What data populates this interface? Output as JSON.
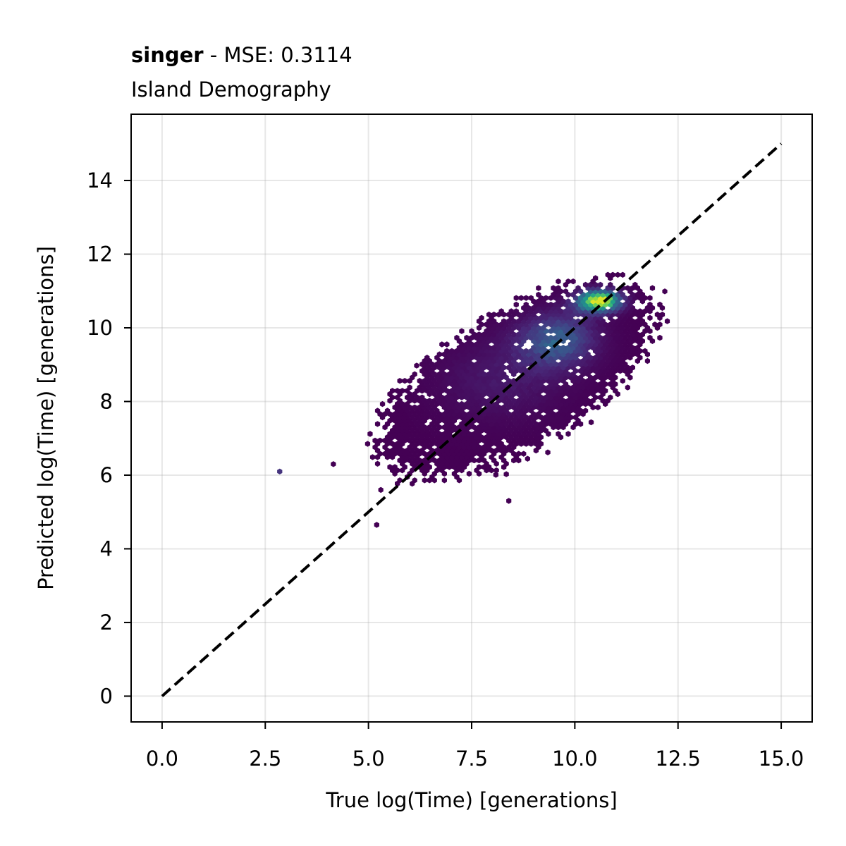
{
  "chart_data": {
    "type": "heatmap",
    "subtype": "hexbin",
    "title_bold": "singer",
    "title_rest": " - MSE: 0.3114",
    "subtitle": "Island Demography",
    "xlabel": "True log(Time) [generations]",
    "ylabel": "Predicted log(Time) [generations]",
    "xlim": [
      -0.75,
      15.75
    ],
    "ylim": [
      -0.7,
      15.8
    ],
    "xticks": [
      0.0,
      2.5,
      5.0,
      7.5,
      10.0,
      12.5,
      15.0
    ],
    "xtick_labels": [
      "0.0",
      "2.5",
      "5.0",
      "7.5",
      "10.0",
      "12.5",
      "15.0"
    ],
    "yticks": [
      0,
      2,
      4,
      6,
      8,
      10,
      12,
      14
    ],
    "ytick_labels": [
      "0",
      "2",
      "4",
      "6",
      "8",
      "10",
      "12",
      "14"
    ],
    "grid": true,
    "colormap": "viridis",
    "reference_line": {
      "style": "dashed",
      "color": "#000000",
      "x": [
        0,
        15
      ],
      "y": [
        0,
        15
      ]
    },
    "density_cores": [
      {
        "x": 10.6,
        "y": 10.75,
        "sx": 0.4,
        "sy": 0.22,
        "weight": 1.0
      },
      {
        "x": 9.6,
        "y": 9.7,
        "sx": 0.7,
        "sy": 0.55,
        "weight": 0.45
      },
      {
        "x": 8.2,
        "y": 8.6,
        "sx": 1.2,
        "sy": 0.9,
        "weight": 0.18
      }
    ],
    "outliers": [
      {
        "x": 2.85,
        "y": 6.1,
        "level": 0.15
      },
      {
        "x": 5.2,
        "y": 4.65,
        "level": 0.0
      },
      {
        "x": 8.4,
        "y": 5.3,
        "level": 0.0
      },
      {
        "x": 4.15,
        "y": 6.3,
        "level": 0.0
      },
      {
        "x": 5.3,
        "y": 5.6,
        "level": 0.0
      }
    ]
  }
}
